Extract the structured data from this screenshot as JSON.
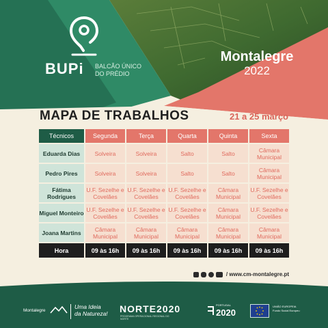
{
  "brand": {
    "name": "BUPi",
    "subtitle_line1": "BALCÃO ÚNICO",
    "subtitle_line2": "DO PRÉDIO"
  },
  "location": {
    "city": "Montalegre",
    "year": "2022"
  },
  "header": {
    "title": "MAPA DE TRABALHOS",
    "dates": "21 a 25 março"
  },
  "schedule": {
    "columns": [
      "Técnicos",
      "Segunda",
      "Terça",
      "Quarta",
      "Quinta",
      "Sexta"
    ],
    "rows": [
      {
        "name": "Eduarda Dias",
        "days": [
          "Solveira",
          "Solveira",
          "Salto",
          "Salto",
          "Câmara Municipal"
        ]
      },
      {
        "name": "Pedro Pires",
        "days": [
          "Solveira",
          "Solveira",
          "Salto",
          "Salto",
          "Câmara Municipal"
        ]
      },
      {
        "name": "Fátima Rodrigues",
        "days": [
          "U.F. Sezelhe e Covelães",
          "U.F. Sezelhe e Covelães",
          "U.F. Sezelhe e Covelães",
          "Câmara Municipal",
          "U.F. Sezelhe e Covelães"
        ]
      },
      {
        "name": "Miguel Monteiro",
        "days": [
          "U.F. Sezelhe e Covelães",
          "U.F. Sezelhe e Covelães",
          "U.F. Sezelhe e Covelães",
          "Câmara Municipal",
          "U.F. Sezelhe e Covelães"
        ]
      },
      {
        "name": "Joana Martins",
        "days": [
          "Câmara Municipal",
          "Câmara Municipal",
          "Câmara Municipal",
          "Câmara Municipal",
          "Câmara Municipal"
        ]
      }
    ],
    "footer": {
      "label": "Hora",
      "values": [
        "09 às 16h",
        "09 às 16h",
        "09 às 16h",
        "09 às 16h",
        "09 às 16h"
      ]
    }
  },
  "social": {
    "icons": [
      "facebook-icon",
      "instagram-icon",
      "twitter-icon",
      "youtube-icon"
    ],
    "website": "/ www.cm-montalegre.pt"
  },
  "footer_logos": {
    "municipality": "Montalegre",
    "slogan_line1": "Uma Ideia",
    "slogan_line2": "da Natureza!",
    "norte": "NORTE2020",
    "norte_sub": "PROGRAMA OPERACIONAL REGIONAL DO NORTE",
    "portugal_label": "PORTUGAL",
    "portugal_year": "2020",
    "eu_line1": "UNIÃO EUROPEIA",
    "eu_line2": "Fundo Social Europeu"
  },
  "colors": {
    "dark_green": "#1e5c46",
    "green": "#2f8a66",
    "coral": "#e3766a",
    "cream": "#f5efe0",
    "light_coral": "#f6dfd0",
    "light_green": "#cfe4d9"
  }
}
